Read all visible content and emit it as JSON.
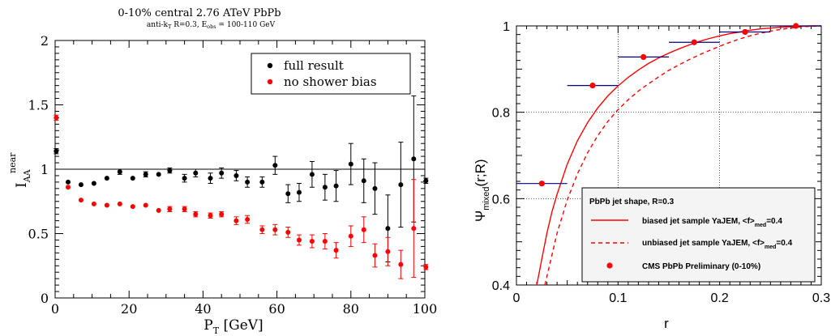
{
  "chart_data": [
    {
      "type": "scatter",
      "title": "0-10% central 2.76 ATeV PbPb",
      "subtitle": "anti-k_T R=0.3, E_obs = 100-110 GeV",
      "xlabel": "P_T [GeV]",
      "ylabel": "I_AA^near",
      "xlim": [
        0,
        100
      ],
      "ylim": [
        0,
        2
      ],
      "x_ticks": [
        "0",
        "20",
        "40",
        "60",
        "80",
        "100"
      ],
      "y_ticks": [
        "0",
        "0.5",
        "1",
        "1.5",
        "2"
      ],
      "reference_line": 1,
      "legend_position": "top-right",
      "series": [
        {
          "name": "full result",
          "color": "#000000",
          "points": [
            {
              "x": 0.3,
              "y": 1.14,
              "err": 0.02
            },
            {
              "x": 3.5,
              "y": 0.9,
              "err": 0.01
            },
            {
              "x": 7,
              "y": 0.88,
              "err": 0.01
            },
            {
              "x": 10.5,
              "y": 0.89,
              "err": 0.01
            },
            {
              "x": 14,
              "y": 0.93,
              "err": 0.01
            },
            {
              "x": 17.5,
              "y": 0.98,
              "err": 0.02
            },
            {
              "x": 21,
              "y": 0.93,
              "err": 0.01
            },
            {
              "x": 24.5,
              "y": 0.96,
              "err": 0.02
            },
            {
              "x": 28,
              "y": 0.96,
              "err": 0.01
            },
            {
              "x": 31,
              "y": 0.99,
              "err": 0.02
            },
            {
              "x": 35,
              "y": 0.93,
              "err": 0.03
            },
            {
              "x": 38,
              "y": 0.97,
              "err": 0.03
            },
            {
              "x": 42,
              "y": 0.93,
              "err": 0.04
            },
            {
              "x": 45,
              "y": 0.97,
              "err": 0.04
            },
            {
              "x": 49,
              "y": 0.95,
              "err": 0.04
            },
            {
              "x": 52,
              "y": 0.9,
              "err": 0.04
            },
            {
              "x": 56,
              "y": 0.9,
              "err": 0.04
            },
            {
              "x": 59.5,
              "y": 1.03,
              "err": 0.07
            },
            {
              "x": 63,
              "y": 0.81,
              "err": 0.07
            },
            {
              "x": 66,
              "y": 0.82,
              "err": 0.07
            },
            {
              "x": 69.5,
              "y": 0.96,
              "err": 0.1
            },
            {
              "x": 73,
              "y": 0.86,
              "err": 0.1
            },
            {
              "x": 76,
              "y": 0.87,
              "err": 0.12
            },
            {
              "x": 80,
              "y": 1.04,
              "err": 0.16
            },
            {
              "x": 83.5,
              "y": 0.91,
              "err": 0.17
            },
            {
              "x": 86.5,
              "y": 0.85,
              "err": 0.2
            },
            {
              "x": 90,
              "y": 0.54,
              "err": 0.26
            },
            {
              "x": 93.5,
              "y": 0.88,
              "err": 0.33
            },
            {
              "x": 97,
              "y": 1.08,
              "err": 0.49
            },
            {
              "x": 100.3,
              "y": 0.91,
              "err": 0.02
            }
          ]
        },
        {
          "name": "no shower bias",
          "color": "#ff0000",
          "points": [
            {
              "x": 0.3,
              "y": 1.4,
              "err": 0.02
            },
            {
              "x": 3.5,
              "y": 0.86,
              "err": 0.01
            },
            {
              "x": 7,
              "y": 0.76,
              "err": 0.01
            },
            {
              "x": 10.5,
              "y": 0.73,
              "err": 0.01
            },
            {
              "x": 14,
              "y": 0.72,
              "err": 0.01
            },
            {
              "x": 17.5,
              "y": 0.73,
              "err": 0.01
            },
            {
              "x": 21,
              "y": 0.71,
              "err": 0.01
            },
            {
              "x": 24.5,
              "y": 0.72,
              "err": 0.01
            },
            {
              "x": 28,
              "y": 0.68,
              "err": 0.01
            },
            {
              "x": 31,
              "y": 0.69,
              "err": 0.02
            },
            {
              "x": 35,
              "y": 0.69,
              "err": 0.02
            },
            {
              "x": 38,
              "y": 0.65,
              "err": 0.02
            },
            {
              "x": 42,
              "y": 0.64,
              "err": 0.02
            },
            {
              "x": 45,
              "y": 0.65,
              "err": 0.02
            },
            {
              "x": 49,
              "y": 0.6,
              "err": 0.03
            },
            {
              "x": 52,
              "y": 0.61,
              "err": 0.03
            },
            {
              "x": 56,
              "y": 0.53,
              "err": 0.03
            },
            {
              "x": 59.5,
              "y": 0.53,
              "err": 0.04
            },
            {
              "x": 63,
              "y": 0.51,
              "err": 0.04
            },
            {
              "x": 66,
              "y": 0.45,
              "err": 0.04
            },
            {
              "x": 69.5,
              "y": 0.44,
              "err": 0.05
            },
            {
              "x": 73,
              "y": 0.44,
              "err": 0.06
            },
            {
              "x": 76,
              "y": 0.37,
              "err": 0.06
            },
            {
              "x": 80,
              "y": 0.48,
              "err": 0.08
            },
            {
              "x": 83.5,
              "y": 0.53,
              "err": 0.1
            },
            {
              "x": 86.5,
              "y": 0.33,
              "err": 0.09
            },
            {
              "x": 90,
              "y": 0.36,
              "err": 0.11
            },
            {
              "x": 93.5,
              "y": 0.26,
              "err": 0.11
            },
            {
              "x": 97,
              "y": 0.54,
              "err": 0.38
            },
            {
              "x": 100.3,
              "y": 0.24,
              "err": 0.02
            }
          ]
        }
      ]
    },
    {
      "type": "line",
      "title": "",
      "xlabel": "r",
      "ylabel": "Ψ_mixed(r;R)",
      "xlim": [
        0,
        0.3
      ],
      "ylim": [
        0.4,
        1.0
      ],
      "x_ticks": [
        "0",
        "0.1",
        "0.2",
        "0.3"
      ],
      "y_ticks": [
        "0.4",
        "0.6",
        "0.8",
        "1"
      ],
      "grid": true,
      "legend_position": "bottom-right",
      "legend_title": "PbPb jet shape, R=0.3",
      "series": [
        {
          "name": "biased jet sample YaJEM, <f>_med=0.4",
          "color": "#ff0000",
          "style": "solid",
          "x": [
            0.02,
            0.025,
            0.03,
            0.035,
            0.04,
            0.05,
            0.06,
            0.07,
            0.08,
            0.09,
            0.1,
            0.11,
            0.12,
            0.13,
            0.14,
            0.15,
            0.16,
            0.17,
            0.18,
            0.19,
            0.2,
            0.21,
            0.22,
            0.23,
            0.24,
            0.25,
            0.26,
            0.27,
            0.28,
            0.29,
            0.3
          ],
          "y": [
            0.4,
            0.46,
            0.52,
            0.57,
            0.61,
            0.68,
            0.734,
            0.776,
            0.81,
            0.838,
            0.861,
            0.881,
            0.898,
            0.913,
            0.926,
            0.937,
            0.947,
            0.956,
            0.964,
            0.971,
            0.977,
            0.982,
            0.986,
            0.99,
            0.993,
            0.995,
            0.997,
            0.998,
            0.999,
            1.0,
            1.0
          ]
        },
        {
          "name": "unbiased jet sample YaJEM, <f>_med=0.4",
          "color": "#ff0000",
          "style": "dashed",
          "x": [
            0.028,
            0.035,
            0.04,
            0.05,
            0.06,
            0.07,
            0.08,
            0.09,
            0.1,
            0.11,
            0.12,
            0.13,
            0.14,
            0.15,
            0.16,
            0.17,
            0.18,
            0.19,
            0.2,
            0.21,
            0.22,
            0.23,
            0.24,
            0.25,
            0.26,
            0.27,
            0.28,
            0.29,
            0.3
          ],
          "y": [
            0.4,
            0.47,
            0.52,
            0.597,
            0.657,
            0.706,
            0.746,
            0.779,
            0.806,
            0.829,
            0.849,
            0.866,
            0.882,
            0.897,
            0.91,
            0.922,
            0.933,
            0.943,
            0.953,
            0.962,
            0.97,
            0.977,
            0.983,
            0.988,
            0.992,
            0.995,
            0.998,
            0.999,
            1.0
          ]
        },
        {
          "name": "CMS PbPb Preliminary (0-10%)",
          "color": "#ff0000",
          "marker_color": "#ff0000",
          "xerr_color": "#000080",
          "style": "points",
          "x": [
            0.025,
            0.075,
            0.125,
            0.175,
            0.225,
            0.275
          ],
          "xerr": [
            0.025,
            0.025,
            0.025,
            0.025,
            0.025,
            0.025
          ],
          "y": [
            0.635,
            0.862,
            0.928,
            0.962,
            0.986,
            1.0
          ]
        }
      ]
    }
  ]
}
